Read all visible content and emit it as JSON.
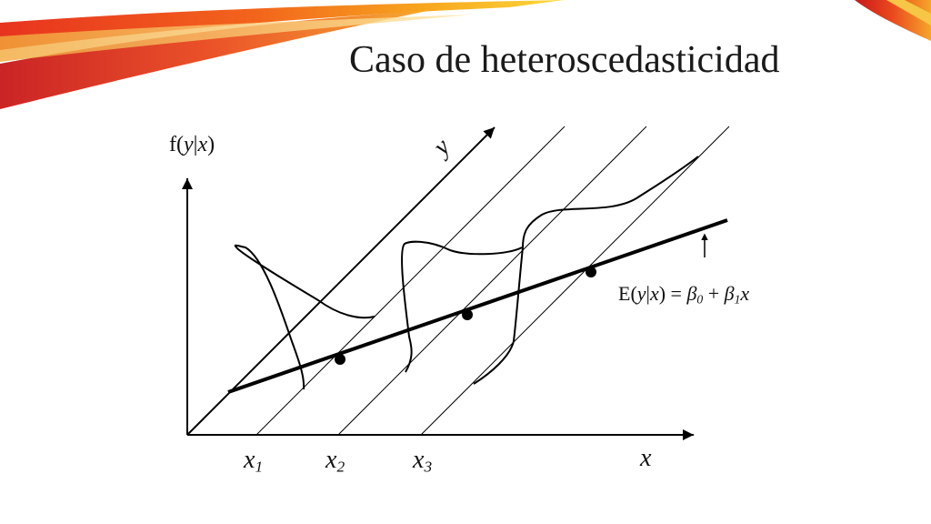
{
  "slide": {
    "title": "Caso de heteroscedasticidad"
  },
  "diagram": {
    "axis_labels": {
      "vertical": {
        "pre": "f(",
        "v1": "y",
        "bar": "|",
        "v2": "x",
        "post": ")"
      },
      "diagonal": "y",
      "horizontal": "x"
    },
    "x_points": [
      {
        "base": "x",
        "sub": "1"
      },
      {
        "base": "x",
        "sub": "2"
      },
      {
        "base": "x",
        "sub": "3"
      }
    ],
    "regression_label": {
      "pre": "E(",
      "v1": "y",
      "bar": "|",
      "v2": "x",
      "eq": ") = ",
      "b0": "β",
      "b0_sub": "0",
      "plus": " + ",
      "b1": "β",
      "b1_sub": "1",
      "xvar": "x"
    },
    "colors": {
      "ink": "#000000",
      "banner_red": "#d62a1e",
      "banner_orange": "#f08a1c",
      "banner_yellow": "#f8c21e"
    }
  }
}
